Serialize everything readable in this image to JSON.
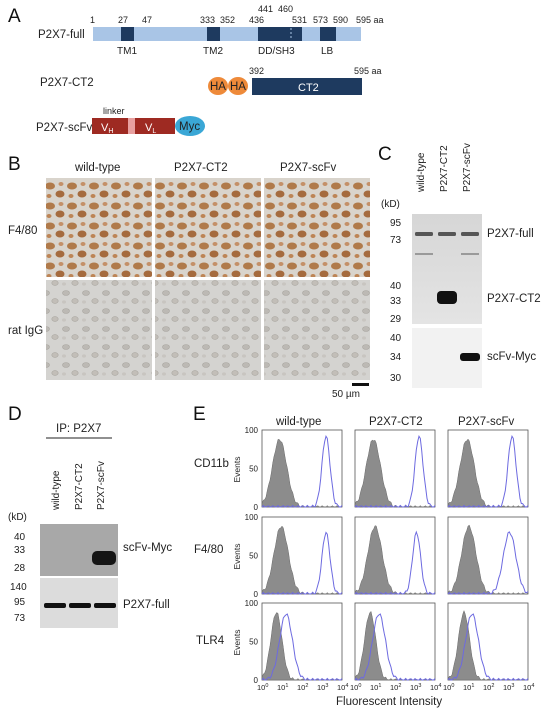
{
  "colors": {
    "full_bar": "#a9c5e6",
    "domain_dark": "#1e3a5f",
    "ct2_bar": "#1e3a5f",
    "ha_tag": "#ee8a3a",
    "scfv_bar": "#9e2a22",
    "linker": "#e8a0a0",
    "myc_tag": "#3aa7d6",
    "stain_brown": "#b07a4a",
    "hist_gray": "#8c8c8c",
    "hist_blue": "#6d6ae0"
  },
  "panels": {
    "a": "A",
    "b": "B",
    "c": "C",
    "d": "D",
    "e": "E"
  },
  "panel_a": {
    "full": {
      "name": "P2X7-full",
      "numbers": [
        "1",
        "27",
        "47",
        "333",
        "352",
        "436",
        "441",
        "460",
        "531",
        "573",
        "590",
        "595 aa"
      ],
      "domains": [
        "TM1",
        "TM2",
        "DD/SH3",
        "LB"
      ]
    },
    "ct2": {
      "name": "P2X7-CT2",
      "tags": [
        "HA",
        "HA"
      ],
      "body": "CT2",
      "start": "392",
      "end": "595 aa"
    },
    "scfv": {
      "name": "P2X7-scFv",
      "linker": "linker",
      "vh": "V",
      "vh_sub": "H",
      "vl": "V",
      "vl_sub": "L",
      "tag": "Myc"
    }
  },
  "panel_b": {
    "columns": [
      "wild-type",
      "P2X7-CT2",
      "P2X7-scFv"
    ],
    "rows": [
      "F4/80",
      "rat IgG"
    ],
    "scale_bar": "50 µm"
  },
  "panel_c": {
    "kd_label": "(kD)",
    "lanes": [
      "wild-type",
      "P2X7-CT2",
      "P2X7-scFv"
    ],
    "top_markers": [
      "95",
      "73",
      "40",
      "33",
      "29"
    ],
    "bottom_markers": [
      "40",
      "34",
      "30"
    ],
    "band_labels": [
      "P2X7-full",
      "P2X7-CT2",
      "scFv-Myc"
    ]
  },
  "panel_d": {
    "ip_label": "IP: P2X7",
    "kd_label": "(kD)",
    "lanes": [
      "wild-type",
      "P2X7-CT2",
      "P2X7-scFv"
    ],
    "top_markers": [
      "40",
      "33",
      "28"
    ],
    "bottom_markers": [
      "140",
      "95",
      "73"
    ],
    "band_labels": [
      "scFv-Myc",
      "P2X7-full"
    ]
  },
  "panel_e": {
    "columns": [
      "wild-type",
      "P2X7-CT2",
      "P2X7-scFv"
    ],
    "rows": [
      "CD11b",
      "F4/80",
      "TLR4"
    ],
    "y_label": "Events",
    "y_ticks": [
      "0",
      "50",
      "100"
    ],
    "x_ticks_base": "10",
    "x_ticks_exp": [
      "0",
      "1",
      "2",
      "3",
      "4"
    ],
    "x_label": "Fluorescent Intensity"
  }
}
